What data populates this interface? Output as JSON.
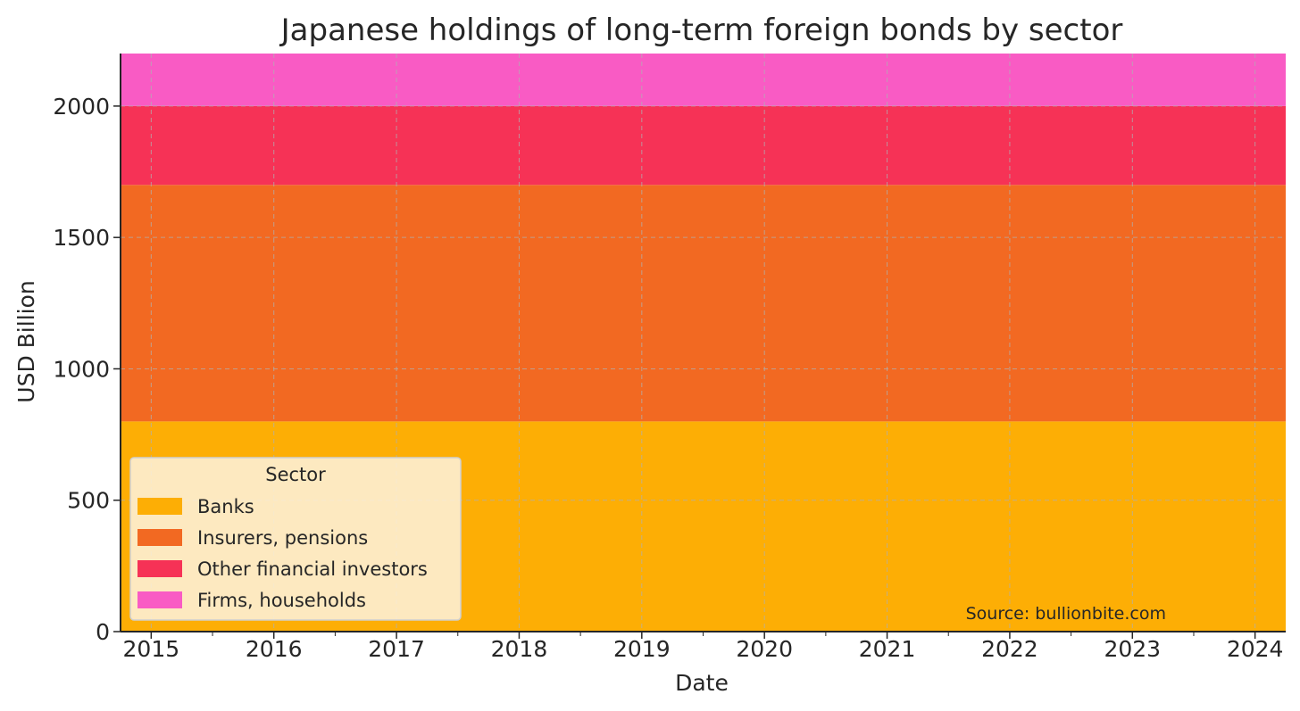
{
  "chart_data": {
    "type": "area",
    "stacked": true,
    "title": "Japanese holdings of long-term foreign bonds by sector",
    "xlabel": "Date",
    "ylabel": "USD Billion",
    "x_ticks": [
      "2015",
      "2016",
      "2017",
      "2018",
      "2019",
      "2020",
      "2021",
      "2022",
      "2023",
      "2024"
    ],
    "x_range": [
      "2014-10",
      "2024-04"
    ],
    "y_ticks": [
      0,
      500,
      1000,
      1500,
      2000
    ],
    "ylim": [
      0,
      2200
    ],
    "grid": true,
    "x": [
      "2014-10",
      "2024-04"
    ],
    "series": [
      {
        "name": "Banks",
        "values": [
          800,
          800
        ],
        "color": "#FDAE05"
      },
      {
        "name": "Insurers, pensions",
        "values": [
          900,
          900
        ],
        "color": "#F26922"
      },
      {
        "name": "Other financial investors",
        "values": [
          300,
          300
        ],
        "color": "#F63256"
      },
      {
        "name": "Firms, households",
        "values": [
          200,
          200
        ],
        "color": "#F95BC4"
      }
    ],
    "legend": {
      "title": "Sector",
      "position": "lower-left"
    },
    "annotation": "Source: bullionbite.com"
  }
}
